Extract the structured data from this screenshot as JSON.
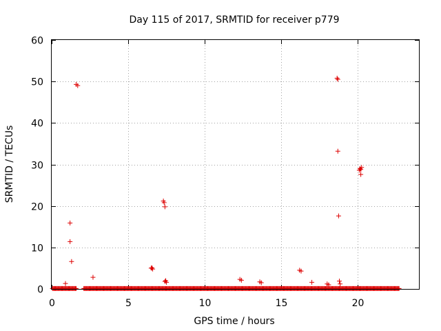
{
  "chart_data": {
    "type": "scatter",
    "title": "Day 115 of 2017, SRMTID for receiver p779",
    "xlabel": "GPS time / hours",
    "ylabel": "SRMTID / TECUs",
    "xlim": [
      0,
      24
    ],
    "ylim": [
      0,
      60
    ],
    "x_ticks": [
      0,
      5,
      10,
      15,
      20
    ],
    "y_ticks": [
      0,
      10,
      20,
      30,
      40,
      50,
      60
    ],
    "x_tick_labels": [
      "0",
      "5",
      "10",
      "15",
      "20"
    ],
    "y_tick_labels": [
      "0",
      "10",
      "20",
      "30",
      "40",
      "50",
      "60"
    ],
    "grid": true,
    "marker": "+",
    "color": "#dd0000",
    "baseline_segments": [
      {
        "x_start": 0.05,
        "x_end": 1.6,
        "y": 0.1
      },
      {
        "x_start": 2.1,
        "x_end": 22.7,
        "y": 0.1
      }
    ],
    "series": [
      {
        "name": "SRMTID",
        "points": [
          [
            0.9,
            1.3
          ],
          [
            1.2,
            15.9
          ],
          [
            1.2,
            11.4
          ],
          [
            1.3,
            6.6
          ],
          [
            1.6,
            49.3
          ],
          [
            1.7,
            49.0
          ],
          [
            2.7,
            2.8
          ],
          [
            6.5,
            5.0
          ],
          [
            6.6,
            4.8
          ],
          [
            6.55,
            5.1
          ],
          [
            7.3,
            21.2
          ],
          [
            7.35,
            20.8
          ],
          [
            7.4,
            19.8
          ],
          [
            7.4,
            1.8
          ],
          [
            7.5,
            1.6
          ],
          [
            7.45,
            2.0
          ],
          [
            12.3,
            2.3
          ],
          [
            12.4,
            2.1
          ],
          [
            13.6,
            1.7
          ],
          [
            13.7,
            1.5
          ],
          [
            16.2,
            4.5
          ],
          [
            16.3,
            4.3
          ],
          [
            17.0,
            1.6
          ],
          [
            18.0,
            1.2
          ],
          [
            18.1,
            1.0
          ],
          [
            18.65,
            50.8
          ],
          [
            18.7,
            50.5
          ],
          [
            18.7,
            33.2
          ],
          [
            18.75,
            17.6
          ],
          [
            18.8,
            1.9
          ],
          [
            18.85,
            1.2
          ],
          [
            20.1,
            28.6
          ],
          [
            20.15,
            29.0
          ],
          [
            20.2,
            28.8
          ],
          [
            20.25,
            29.3
          ],
          [
            20.2,
            27.6
          ]
        ]
      }
    ]
  }
}
